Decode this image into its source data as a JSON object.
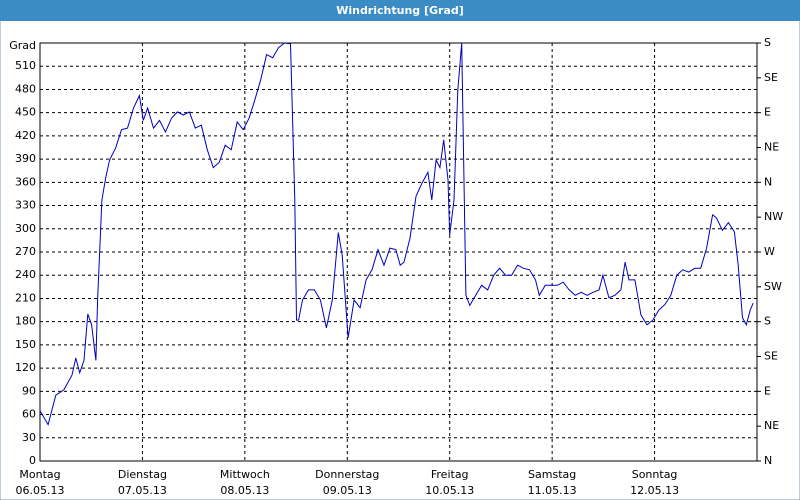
{
  "chart_data": {
    "type": "line",
    "title": "Windrichtung [Grad]",
    "y_label": "Grad",
    "x": [
      0,
      1.9,
      3.7,
      5.6,
      7.5,
      8.4,
      9.3,
      10.3,
      11.2,
      12.1,
      13.1,
      13.5,
      14.5,
      15.4,
      16.3,
      17.7,
      19.1,
      20.5,
      21.9,
      23.3,
      24.2,
      25.2,
      26.6,
      28,
      29.4,
      30.8,
      32.2,
      33.6,
      35,
      36.4,
      37.8,
      39.2,
      40.6,
      42,
      43.4,
      44.8,
      46.2,
      47.6,
      49,
      50.3,
      51.7,
      53.1,
      54.5,
      55.9,
      57.3,
      58.7,
      59.7,
      60.1,
      60.6,
      61.5,
      62.9,
      64.3,
      65.7,
      67.1,
      68.5,
      69.9,
      70.8,
      72.2,
      73.6,
      75,
      76.4,
      77.8,
      79.2,
      80.6,
      82,
      83.4,
      84.4,
      85.3,
      86.7,
      88.1,
      89.5,
      90.9,
      91.8,
      92.8,
      93.7,
      94.6,
      95.6,
      96,
      97,
      97.9,
      98.8,
      99.8,
      100.7,
      102.1,
      103.5,
      104.9,
      106.3,
      107.7,
      109.1,
      110.5,
      111.9,
      113.3,
      114.7,
      116.1,
      117,
      118.4,
      119.8,
      121.2,
      122.6,
      124,
      125.4,
      126.8,
      128.2,
      129.6,
      131,
      131.9,
      133.3,
      134.7,
      136.1,
      137.1,
      138,
      139.4,
      140.8,
      142.2,
      143.6,
      145,
      146.4,
      147.8,
      149.2,
      150.6,
      152,
      153.4,
      154.8,
      156.2,
      157.6,
      158.5,
      159.9,
      161.3,
      162.7,
      163.6,
      164.6,
      165.5,
      166.4,
      167.1
    ],
    "values": [
      65,
      47,
      85,
      92,
      111,
      133,
      114,
      130,
      190,
      176,
      130,
      208,
      337,
      366,
      389,
      404,
      428,
      430,
      456,
      472,
      440,
      456,
      430,
      440,
      425,
      443,
      451,
      447,
      451,
      430,
      434,
      402,
      379,
      386,
      408,
      402,
      438,
      428,
      443,
      466,
      492,
      525,
      521,
      534,
      540,
      539,
      337,
      182,
      182,
      208,
      221,
      221,
      208,
      172,
      208,
      295,
      266,
      159,
      208,
      198,
      234,
      247,
      273,
      253,
      275,
      273,
      253,
      257,
      288,
      342,
      359,
      373,
      337,
      389,
      379,
      415,
      363,
      292,
      337,
      479,
      540,
      214,
      201,
      214,
      227,
      221,
      240,
      249,
      240,
      240,
      253,
      249,
      247,
      234,
      214,
      227,
      227,
      227,
      231,
      221,
      214,
      218,
      214,
      218,
      221,
      240,
      211,
      214,
      221,
      257,
      234,
      234,
      189,
      176,
      182,
      195,
      202,
      214,
      240,
      247,
      244,
      249,
      249,
      275,
      318,
      314,
      298,
      308,
      296,
      253,
      185,
      176,
      195,
      204
    ],
    "color": "#0000c0",
    "xlim": [
      0,
      168
    ],
    "xticks": [
      {
        "value": 0,
        "label": "Montag"
      },
      {
        "value": 24,
        "label": "Dienstag"
      },
      {
        "value": 48,
        "label": "Mittwoch"
      },
      {
        "value": 72,
        "label": "Donnerstag"
      },
      {
        "value": 96,
        "label": "Freitag"
      },
      {
        "value": 120,
        "label": "Samstag"
      },
      {
        "value": 144,
        "label": "Sonntag"
      }
    ],
    "xtick_dates": [
      "06.05.13",
      "07.05.13",
      "08.05.13",
      "09.05.13",
      "10.05.13",
      "11.05.13",
      "12.05.13"
    ],
    "ylim": [
      0,
      540
    ],
    "yticks": [
      0,
      30,
      60,
      90,
      120,
      150,
      180,
      210,
      240,
      270,
      300,
      330,
      360,
      390,
      420,
      450,
      480,
      510
    ],
    "y2lim": [
      0,
      540
    ],
    "y2ticks": [
      {
        "value": 0,
        "label": "N"
      },
      {
        "value": 45,
        "label": "NE"
      },
      {
        "value": 90,
        "label": "E"
      },
      {
        "value": 135,
        "label": "SE"
      },
      {
        "value": 180,
        "label": "S"
      },
      {
        "value": 225,
        "label": "SW"
      },
      {
        "value": 270,
        "label": "W"
      },
      {
        "value": 315,
        "label": "NW"
      },
      {
        "value": 360,
        "label": "N"
      },
      {
        "value": 405,
        "label": "NE"
      },
      {
        "value": 450,
        "label": "E"
      },
      {
        "value": 495,
        "label": "SE"
      },
      {
        "value": 540,
        "label": "S"
      }
    ],
    "grid": true
  }
}
